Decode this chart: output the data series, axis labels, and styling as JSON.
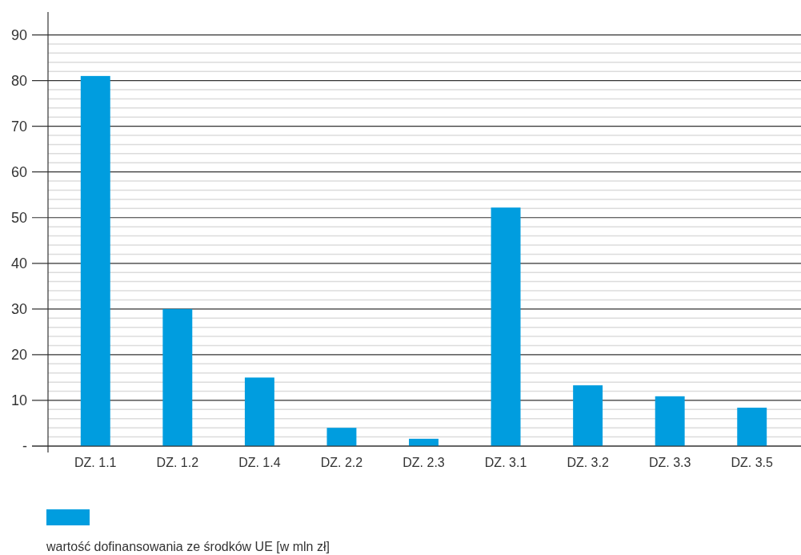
{
  "chart_data": {
    "type": "bar",
    "categories": [
      "DZ. 1.1",
      "DZ. 1.2",
      "DZ. 1.4",
      "DZ. 2.2",
      "DZ. 2.3",
      "DZ. 3.1",
      "DZ. 3.2",
      "DZ. 3.3",
      "DZ. 3.5"
    ],
    "series": [
      {
        "name": "wartość dofinansowania ze środków UE [w mln zł]",
        "color": "#009ddf",
        "values": [
          81,
          30,
          15,
          4,
          1.6,
          52.2,
          13.3,
          10.9,
          8.4
        ]
      }
    ],
    "ylim": [
      0,
      95
    ],
    "yticks": [
      {
        "value": 0,
        "label": "-"
      },
      {
        "value": 2,
        "label": null
      },
      {
        "value": 4,
        "label": null
      },
      {
        "value": 6,
        "label": null
      },
      {
        "value": 8,
        "label": null
      },
      10,
      {
        "value": 12,
        "label": null
      },
      {
        "value": 14,
        "label": null
      },
      {
        "value": 16,
        "label": null
      },
      {
        "value": 18,
        "label": null
      },
      20,
      {
        "value": 22,
        "label": null
      },
      {
        "value": 24,
        "label": null
      },
      {
        "value": 26,
        "label": null
      },
      {
        "value": 28,
        "label": null
      },
      30,
      {
        "value": 32,
        "label": null
      },
      {
        "value": 34,
        "label": null
      },
      {
        "value": 36,
        "label": null
      },
      {
        "value": 38,
        "label": null
      },
      40,
      {
        "value": 42,
        "label": null
      },
      {
        "value": 44,
        "label": null
      },
      {
        "value": 46,
        "label": null
      },
      {
        "value": 48,
        "label": null
      },
      50,
      {
        "value": 52,
        "label": null
      },
      {
        "value": 54,
        "label": null
      },
      {
        "value": 56,
        "label": null
      },
      {
        "value": 58,
        "label": null
      },
      60,
      {
        "value": 62,
        "label": null
      },
      {
        "value": 64,
        "label": null
      },
      {
        "value": 66,
        "label": null
      },
      {
        "value": 68,
        "label": null
      },
      70,
      {
        "value": 72,
        "label": null
      },
      {
        "value": 74,
        "label": null
      },
      {
        "value": 76,
        "label": null
      },
      {
        "value": 78,
        "label": null
      },
      80,
      {
        "value": 82,
        "label": null
      },
      {
        "value": 84,
        "label": null
      },
      {
        "value": 86,
        "label": null
      },
      {
        "value": 88,
        "label": null
      },
      90
    ],
    "grid": "y",
    "legend": "bottom"
  }
}
